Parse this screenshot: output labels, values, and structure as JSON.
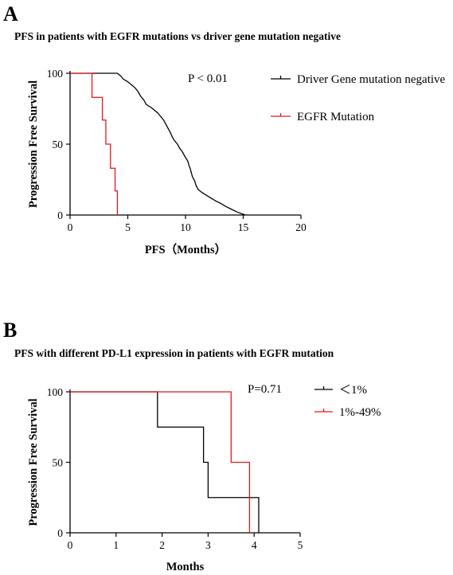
{
  "panel_labels": [
    "A",
    "B"
  ],
  "chart_data": [
    {
      "type": "line",
      "title": "PFS in patients with EGFR mutations vs driver gene mutation negative",
      "xlabel": "PFS（Months）",
      "ylabel": "Progression Free Survival",
      "xlim": [
        0,
        20
      ],
      "ylim": [
        0,
        100
      ],
      "xticks": [
        "0",
        "5",
        "10",
        "15",
        "20"
      ],
      "yticks": [
        "0",
        "50",
        "100"
      ],
      "annotation": "P < 0.01",
      "legend_position": "right",
      "series": [
        {
          "name": "Driver Gene mutation negative",
          "color": "#000000",
          "steps": [
            [
              0,
              100
            ],
            [
              4.1,
              100
            ],
            [
              4.4,
              98
            ],
            [
              4.6,
              96
            ],
            [
              5.0,
              94
            ],
            [
              5.3,
              92
            ],
            [
              5.6,
              90
            ],
            [
              5.9,
              87
            ],
            [
              6.1,
              84
            ],
            [
              6.4,
              81
            ],
            [
              6.6,
              78
            ],
            [
              7.0,
              76
            ],
            [
              7.3,
              74
            ],
            [
              7.6,
              72
            ],
            [
              7.8,
              70
            ],
            [
              8.1,
              67
            ],
            [
              8.3,
              64
            ],
            [
              8.5,
              61
            ],
            [
              8.7,
              58
            ],
            [
              8.8,
              56
            ],
            [
              9.0,
              53
            ],
            [
              9.3,
              50
            ],
            [
              9.5,
              47
            ],
            [
              9.7,
              45
            ],
            [
              9.9,
              42
            ],
            [
              10.2,
              38
            ],
            [
              10.3,
              35
            ],
            [
              10.4,
              33
            ],
            [
              10.5,
              30
            ],
            [
              10.6,
              27
            ],
            [
              10.8,
              24
            ],
            [
              10.9,
              21
            ],
            [
              11.1,
              18
            ],
            [
              11.4,
              16
            ],
            [
              11.8,
              14
            ],
            [
              12.2,
              12
            ],
            [
              12.6,
              10
            ],
            [
              13.1,
              8
            ],
            [
              13.5,
              6
            ],
            [
              14.0,
              4
            ],
            [
              14.5,
              2
            ],
            [
              15.2,
              0
            ]
          ]
        },
        {
          "name": "EGFR Mutation",
          "color": "#e0191c",
          "steps": [
            [
              0,
              100
            ],
            [
              1.9,
              100
            ],
            [
              1.9,
              83
            ],
            [
              2.8,
              83
            ],
            [
              2.8,
              67
            ],
            [
              3.1,
              67
            ],
            [
              3.1,
              50
            ],
            [
              3.5,
              50
            ],
            [
              3.5,
              33
            ],
            [
              3.9,
              33
            ],
            [
              3.9,
              17
            ],
            [
              4.1,
              17
            ],
            [
              4.1,
              0
            ]
          ]
        }
      ]
    },
    {
      "type": "line",
      "title": "PFS with different PD-L1 expression in patients with EGFR mutation",
      "xlabel": "Months",
      "ylabel": "Progression Free Survival",
      "xlim": [
        0,
        5
      ],
      "ylim": [
        0,
        100
      ],
      "xticks": [
        "0",
        "1",
        "2",
        "3",
        "4",
        "5"
      ],
      "yticks": [
        "0",
        "50",
        "100"
      ],
      "annotation": "P=0.71",
      "legend_position": "top-right",
      "series": [
        {
          "name": "＜1%",
          "color": "#000000",
          "steps": [
            [
              0,
              100
            ],
            [
              1.9,
              100
            ],
            [
              1.9,
              75
            ],
            [
              2.9,
              75
            ],
            [
              2.9,
              50
            ],
            [
              3.0,
              50
            ],
            [
              3.0,
              25
            ],
            [
              4.1,
              25
            ],
            [
              4.1,
              0
            ]
          ]
        },
        {
          "name": "1%-49%",
          "color": "#e0191c",
          "steps": [
            [
              0,
              100
            ],
            [
              3.5,
              100
            ],
            [
              3.5,
              50
            ],
            [
              3.9,
              50
            ],
            [
              3.9,
              0
            ]
          ]
        }
      ]
    }
  ]
}
